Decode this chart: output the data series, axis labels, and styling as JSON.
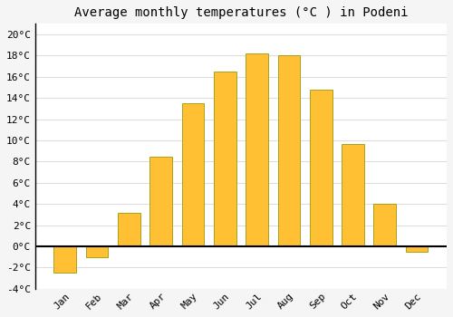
{
  "months": [
    "Jan",
    "Feb",
    "Mar",
    "Apr",
    "May",
    "Jun",
    "Jul",
    "Aug",
    "Sep",
    "Oct",
    "Nov",
    "Dec"
  ],
  "values": [
    -2.5,
    -1.0,
    3.2,
    8.5,
    13.5,
    16.5,
    18.2,
    18.0,
    14.8,
    9.7,
    4.0,
    -0.5
  ],
  "bar_color": "#FFC133",
  "bar_edge_color": "#999900",
  "title": "Average monthly temperatures (°C ) in Podeni",
  "ylim": [
    -4,
    21
  ],
  "yticks": [
    -4,
    -2,
    0,
    2,
    4,
    6,
    8,
    10,
    12,
    14,
    16,
    18,
    20
  ],
  "ytick_labels": [
    "-4°C",
    "-2°C",
    "0°C",
    "2°C",
    "4°C",
    "6°C",
    "8°C",
    "10°C",
    "12°C",
    "14°C",
    "16°C",
    "18°C",
    "20°C"
  ],
  "background_color": "#f5f5f5",
  "plot_bg_color": "#ffffff",
  "grid_color": "#dddddd",
  "zero_line_color": "#000000",
  "spine_color": "#000000",
  "title_fontsize": 10,
  "tick_fontsize": 8,
  "font_family": "monospace",
  "bar_width": 0.7
}
